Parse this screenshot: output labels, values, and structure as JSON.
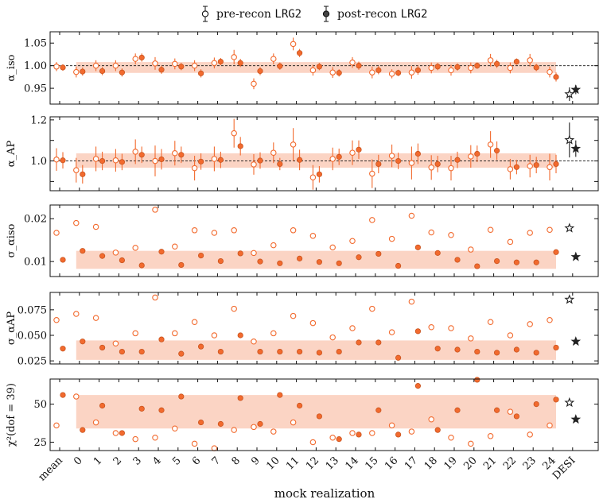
{
  "chart_data": {
    "type": "scatter",
    "xlabel": "mock realization",
    "x_tick_labels": [
      "mean",
      "0",
      "1",
      "2",
      "3",
      "4",
      "5",
      "6",
      "7",
      "8",
      "9",
      "10",
      "11",
      "12",
      "13",
      "14",
      "15",
      "16",
      "17",
      "18",
      "19",
      "20",
      "21",
      "22",
      "23",
      "24",
      "DESI"
    ],
    "legend": [
      {
        "label_text": "pre-recon ",
        "label_code": "LRG2",
        "marker": "open-circle"
      },
      {
        "label_text": "post-recon ",
        "label_code": "LRG2",
        "marker": "filled-circle"
      }
    ],
    "colors": {
      "mock": "#f26a2e",
      "band": "#f9c6b0",
      "desi": "#222222"
    },
    "panels": [
      {
        "id": "alpha-iso",
        "ylabel": "α_iso",
        "ylim": [
          0.915,
          1.075
        ],
        "yticks": [
          0.95,
          1.0,
          1.05
        ],
        "ytick_labels": [
          "0.95",
          "1.00",
          "1.05"
        ],
        "refline": 1.0,
        "band": [
          0.984,
          1.008
        ],
        "pre": [
          0.998,
          0.986,
          1.0,
          1.0,
          1.015,
          1.005,
          1.004,
          1.0,
          1.006,
          1.019,
          0.96,
          1.015,
          1.048,
          0.99,
          0.985,
          1.007,
          0.985,
          0.982,
          0.985,
          0.995,
          0.99,
          0.995,
          1.012,
          0.995,
          1.012,
          0.986
        ],
        "pre_err": [
          0.01,
          0.012,
          0.012,
          0.012,
          0.012,
          0.014,
          0.012,
          0.012,
          0.012,
          0.016,
          0.012,
          0.012,
          0.014,
          0.012,
          0.012,
          0.012,
          0.013,
          0.01,
          0.014,
          0.012,
          0.012,
          0.012,
          0.014,
          0.012,
          0.014,
          0.012
        ],
        "post": [
          0.996,
          0.987,
          0.988,
          0.985,
          1.018,
          0.991,
          0.998,
          0.983,
          1.009,
          1.006,
          0.988,
          0.999,
          1.028,
          0.998,
          0.984,
          1.0,
          0.99,
          0.984,
          0.99,
          0.998,
          0.997,
          1.0,
          1.004,
          1.009,
          0.996,
          0.975
        ],
        "post_err": [
          0.007,
          0.009,
          0.009,
          0.009,
          0.009,
          0.009,
          0.008,
          0.009,
          0.008,
          0.009,
          0.009,
          0.008,
          0.009,
          0.008,
          0.008,
          0.009,
          0.009,
          0.007,
          0.01,
          0.008,
          0.008,
          0.007,
          0.009,
          0.007,
          0.008,
          0.01
        ],
        "desi_pre": 0.937,
        "desi_pre_err": 0.015,
        "desi_post": 0.947,
        "desi_post_err": 0.01
      },
      {
        "id": "alpha-ap",
        "ylabel": "α_AP",
        "ylim": [
          0.855,
          1.215
        ],
        "yticks": [
          0.9,
          1.0,
          1.1,
          1.2
        ],
        "ytick_labels": [
          "",
          "1.0",
          "",
          "1.2"
        ],
        "refline": 1.0,
        "band": [
          0.967,
          1.037
        ],
        "pre": [
          1.007,
          0.955,
          1.01,
          1.003,
          1.045,
          1.0,
          1.038,
          0.965,
          1.01,
          1.135,
          0.983,
          1.04,
          1.08,
          0.92,
          1.01,
          1.04,
          0.938,
          1.025,
          0.99,
          0.968,
          0.965,
          1.022,
          1.08,
          0.96,
          0.975,
          0.97
        ],
        "pre_err": [
          0.055,
          0.06,
          0.06,
          0.055,
          0.06,
          0.075,
          0.06,
          0.06,
          0.06,
          0.07,
          0.05,
          0.05,
          0.08,
          0.06,
          0.055,
          0.06,
          0.07,
          0.055,
          0.08,
          0.06,
          0.06,
          0.055,
          0.065,
          0.05,
          0.055,
          0.065
        ],
        "post": [
          1.003,
          0.935,
          1.0,
          0.995,
          1.03,
          1.008,
          1.03,
          0.997,
          1.005,
          1.072,
          1.002,
          0.985,
          1.005,
          0.935,
          1.02,
          1.055,
          0.985,
          1.0,
          1.035,
          0.985,
          1.005,
          1.035,
          1.05,
          0.97,
          0.98,
          0.985
        ],
        "post_err": [
          0.04,
          0.045,
          0.045,
          0.04,
          0.04,
          0.05,
          0.04,
          0.04,
          0.04,
          0.045,
          0.04,
          0.03,
          0.05,
          0.04,
          0.04,
          0.045,
          0.045,
          0.04,
          0.05,
          0.04,
          0.04,
          0.04,
          0.045,
          0.035,
          0.04,
          0.045
        ],
        "desi_pre": 1.102,
        "desi_pre_err": 0.085,
        "desi_post": 1.06,
        "desi_post_err": 0.04
      },
      {
        "id": "sigma-alpha-iso",
        "ylabel": "σ_αiso",
        "ylim": [
          0.0065,
          0.0232
        ],
        "yticks": [
          0.01,
          0.02
        ],
        "ytick_labels": [
          "0.01",
          "0.02"
        ],
        "refline": null,
        "band": [
          0.0083,
          0.0125
        ],
        "pre": [
          0.0167,
          0.019,
          0.0181,
          0.0121,
          0.0132,
          0.0221,
          0.0135,
          0.0173,
          0.0167,
          0.0173,
          0.012,
          0.0138,
          0.0173,
          0.016,
          0.0133,
          0.0148,
          0.0197,
          0.0153,
          0.0207,
          0.0168,
          0.0162,
          0.0128,
          0.0174,
          0.0146,
          0.0167,
          0.0174
        ],
        "post": [
          0.0104,
          0.0125,
          0.0113,
          0.0103,
          0.0091,
          0.0123,
          0.0092,
          0.0114,
          0.0101,
          0.0119,
          0.01,
          0.0096,
          0.0107,
          0.0099,
          0.0096,
          0.011,
          0.0118,
          0.009,
          0.0133,
          0.012,
          0.0104,
          0.0089,
          0.0101,
          0.0098,
          0.0098,
          0.0122
        ],
        "desi_pre": 0.0178,
        "desi_post": 0.0111
      },
      {
        "id": "sigma-alpha-ap",
        "ylabel": "σ_αAP",
        "ylim": [
          0.022,
          0.092
        ],
        "yticks": [
          0.025,
          0.05,
          0.075
        ],
        "ytick_labels": [
          "0.025",
          "0.050",
          "0.075"
        ],
        "refline": null,
        "band": [
          0.026,
          0.045
        ],
        "pre": [
          0.065,
          0.071,
          0.067,
          0.042,
          0.052,
          0.087,
          0.052,
          0.063,
          0.05,
          0.076,
          0.044,
          0.052,
          0.069,
          0.062,
          0.048,
          0.057,
          0.076,
          0.053,
          0.083,
          0.058,
          0.057,
          0.047,
          0.063,
          0.05,
          0.061,
          0.065
        ],
        "post": [
          0.037,
          0.044,
          0.038,
          0.034,
          0.034,
          0.046,
          0.032,
          0.039,
          0.034,
          0.05,
          0.034,
          0.034,
          0.034,
          0.033,
          0.034,
          0.043,
          0.043,
          0.028,
          0.054,
          0.037,
          0.036,
          0.034,
          0.033,
          0.036,
          0.033,
          0.038
        ],
        "desi_pre": 0.085,
        "desi_post": 0.044
      },
      {
        "id": "chi2",
        "ylabel": "χ²(dof = 39)",
        "ylim": [
          19.5,
          66.5
        ],
        "yticks": [
          25,
          50
        ],
        "ytick_labels": [
          "25",
          "50"
        ],
        "refline": null,
        "band": [
          34,
          56
        ],
        "pre": [
          36,
          55,
          38,
          31,
          27,
          28,
          34,
          24,
          21,
          33,
          35,
          32,
          38,
          25,
          28,
          31,
          31,
          36,
          32,
          40,
          28,
          24,
          29,
          45,
          30,
          36
        ],
        "post": [
          56,
          33,
          49,
          31,
          47,
          46,
          55,
          38,
          37,
          54,
          37,
          56,
          49,
          42,
          27,
          30,
          46,
          30,
          62,
          33,
          46,
          66,
          46,
          42,
          50,
          53
        ],
        "desi_pre": 51,
        "desi_post": 40
      }
    ]
  }
}
